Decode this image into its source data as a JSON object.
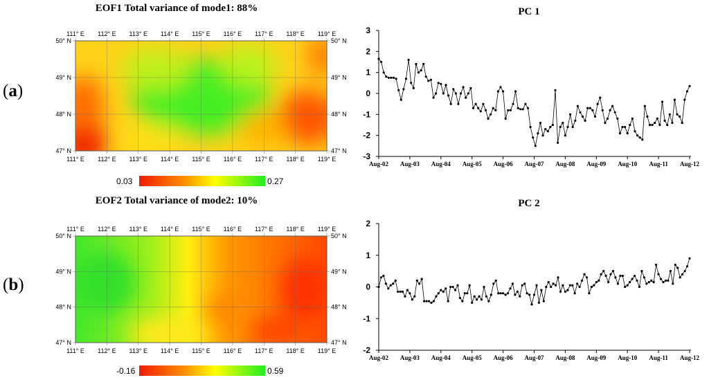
{
  "panels": {
    "a": {
      "open": "(",
      "letter": "a",
      "close": ")"
    },
    "b": {
      "open": "(",
      "letter": "b",
      "close": ")"
    }
  },
  "maps": [
    {
      "title": "EOF1 Total variance of mode1: 88%",
      "lon_ticks": [
        "111° E",
        "112° E",
        "113° E",
        "114° E",
        "115° E",
        "116° E",
        "117° E",
        "118° E",
        "119° E"
      ],
      "lat_ticks": [
        "50° N",
        "49° N",
        "48° N",
        "47° N"
      ],
      "colorbar": {
        "min_label": "0.03",
        "max_label": "0.27",
        "colors": [
          "#ee1c00",
          "#ff8c00",
          "#ffff00",
          "#22ee22"
        ]
      }
    },
    {
      "title": "EOF2 Total variance of mode2: 10%",
      "lon_ticks": [
        "111° E",
        "112° E",
        "113° E",
        "114° E",
        "115° E",
        "116° E",
        "117° E",
        "118° E",
        "119° E"
      ],
      "lat_ticks": [
        "50° N",
        "49° N",
        "48° N",
        "47° N"
      ],
      "colorbar": {
        "min_label": "-0.16",
        "max_label": "0.59",
        "colors": [
          "#ee1c00",
          "#ff8c00",
          "#ffff00",
          "#22ee22"
        ]
      }
    }
  ],
  "chart_data": [
    {
      "type": "line",
      "title": "PC 1",
      "xlabel": "",
      "ylabel": "",
      "x_ticks": [
        "Aug-02",
        "Aug-03",
        "Aug-04",
        "Aug-05",
        "Aug-06",
        "Aug-07",
        "Aug-08",
        "Aug-09",
        "Aug-10",
        "Aug-11",
        "Aug-12"
      ],
      "ylim": [
        -3,
        3
      ],
      "y_ticks": [
        3,
        2,
        1,
        0,
        -1,
        -2,
        -3
      ],
      "series": [
        {
          "values": [
            1.65,
            1.5,
            1.0,
            0.8,
            0.75,
            0.75,
            0.75,
            0.7,
            0.15,
            -0.3,
            0.2,
            0.7,
            1.6,
            0.5,
            0.25,
            1.4,
            1.0,
            1.1,
            1.4,
            0.8,
            0.6,
            0.65,
            -0.2,
            0.0,
            0.5,
            0.45,
            0.0,
            0.4,
            -0.1,
            -0.5,
            0.2,
            0.0,
            -0.5,
            0.0,
            0.3,
            -0.2,
            0.0,
            0.25,
            -0.7,
            -0.5,
            -0.7,
            -0.85,
            -0.5,
            -0.8,
            -1.2,
            -1.0,
            -0.7,
            -0.8,
            0.1,
            0.3,
            0.1,
            -1.2,
            -0.8,
            -0.8,
            -0.5,
            0.1,
            -0.7,
            -0.75,
            -0.75,
            -0.5,
            -0.7,
            -1.6,
            -2.1,
            -2.5,
            -1.9,
            -1.4,
            -2.0,
            -1.7,
            -1.8,
            -1.6,
            -1.5,
            0.15,
            -2.35,
            -1.6,
            -1.4,
            -2.0,
            -1.6,
            -1.0,
            -1.6,
            -1.3,
            -0.6,
            -0.9,
            -1.1,
            -1.3,
            -0.7,
            -0.7,
            -0.8,
            -1.1,
            -0.5,
            -0.2,
            -0.8,
            -1.4,
            -1.2,
            -0.8,
            -0.6,
            -0.9,
            -1.2,
            -1.9,
            -1.6,
            -1.6,
            -1.9,
            -1.5,
            -1.2,
            -1.8,
            -2.0,
            -2.1,
            -2.2,
            -0.6,
            -1.1,
            -1.5,
            -1.5,
            -1.4,
            -1.2,
            -1.5,
            -0.4,
            -1.3,
            -1.5,
            -1.0,
            -1.4,
            -0.3,
            -1.0,
            -1.1,
            -1.4,
            -0.3,
            0.1,
            0.35
          ]
        }
      ]
    },
    {
      "type": "line",
      "title": "PC 2",
      "xlabel": "",
      "ylabel": "",
      "x_ticks": [
        "Aug-02",
        "Aug-03",
        "Aug-04",
        "Aug-05",
        "Aug-06",
        "Aug-07",
        "Aug-08",
        "Aug-09",
        "Aug-10",
        "Aug-11",
        "Aug-12"
      ],
      "ylim": [
        -2,
        2
      ],
      "y_ticks": [
        2,
        1,
        0,
        -1,
        -2
      ],
      "series": [
        {
          "values": [
            0.0,
            0.3,
            0.35,
            0.1,
            -0.05,
            0.05,
            0.1,
            0.2,
            -0.15,
            -0.15,
            -0.15,
            -0.3,
            -0.1,
            -0.2,
            -0.4,
            -0.3,
            0.2,
            0.1,
            0.25,
            -0.45,
            -0.45,
            -0.45,
            -0.5,
            -0.45,
            -0.3,
            -0.2,
            -0.1,
            -0.15,
            -0.05,
            -0.45,
            0.0,
            0.0,
            -0.1,
            0.05,
            -0.35,
            -0.45,
            -0.2,
            -0.2,
            0.05,
            -0.5,
            -0.3,
            -0.4,
            -0.3,
            -0.4,
            0.0,
            -0.3,
            -0.45,
            -0.25,
            0.1,
            0.2,
            -0.2,
            -0.2,
            -0.2,
            -0.25,
            -0.2,
            -0.05,
            0.1,
            -0.25,
            -0.15,
            -0.3,
            0.05,
            0.1,
            -0.2,
            -0.25,
            -0.55,
            -0.25,
            0.05,
            -0.5,
            -0.1,
            -0.45,
            0.0,
            0.15,
            0.0,
            0.1,
            0.05,
            0.3,
            -0.15,
            0.05,
            -0.15,
            -0.1,
            0.05,
            0.05,
            -0.2,
            0.1,
            0.0,
            0.2,
            0.4,
            0.3,
            -0.2,
            0.0,
            0.05,
            0.15,
            0.2,
            0.4,
            0.5,
            0.35,
            0.15,
            0.4,
            0.5,
            0.3,
            0.1,
            0.35,
            0.35,
            0.0,
            0.05,
            0.15,
            0.25,
            0.35,
            0.2,
            0.0,
            0.5,
            0.3,
            0.1,
            0.15,
            0.2,
            0.15,
            0.7,
            0.4,
            0.25,
            0.15,
            0.2,
            0.2,
            0.5,
            0.1,
            0.7,
            0.6,
            0.3,
            0.4,
            0.5,
            0.65,
            0.9
          ]
        }
      ]
    }
  ]
}
